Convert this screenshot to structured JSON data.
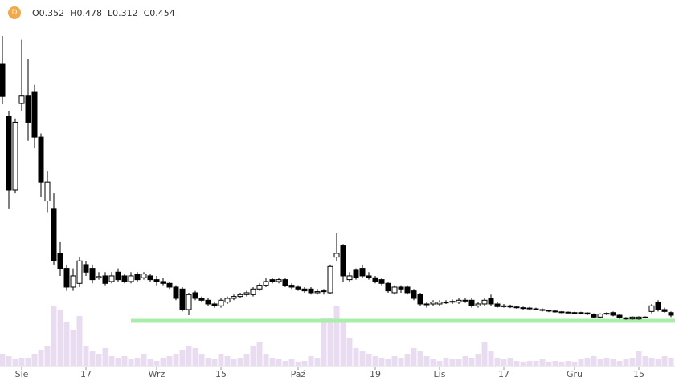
{
  "chart_data": {
    "type": "candlestick",
    "symbol": "D",
    "ohlc_legend": [
      {
        "label": "O",
        "value": 0.352
      },
      {
        "label": "H",
        "value": 0.478
      },
      {
        "label": "L",
        "value": 0.312
      },
      {
        "label": "C",
        "value": 0.454
      }
    ],
    "categories": [
      null,
      null,
      null,
      "Sle",
      null,
      null,
      null,
      null,
      null,
      null,
      null,
      null,
      null,
      "17",
      null,
      null,
      null,
      null,
      null,
      null,
      null,
      null,
      null,
      null,
      "Wrz",
      null,
      null,
      null,
      null,
      null,
      null,
      null,
      null,
      null,
      "15",
      null,
      null,
      null,
      null,
      null,
      null,
      null,
      null,
      null,
      null,
      null,
      "Paź",
      null,
      null,
      null,
      null,
      null,
      null,
      null,
      null,
      null,
      null,
      null,
      "19",
      null,
      null,
      null,
      null,
      null,
      null,
      null,
      null,
      null,
      "Lis",
      null,
      null,
      null,
      null,
      null,
      null,
      null,
      null,
      null,
      "17",
      null,
      null,
      null,
      null,
      null,
      null,
      null,
      null,
      null,
      null,
      "Gru",
      null,
      null,
      null,
      null,
      null,
      null,
      null,
      null,
      null,
      "15",
      null,
      null,
      null,
      null,
      null
    ],
    "open": [
      0.925,
      0.786,
      0.589,
      0.82,
      0.84,
      0.85,
      0.73,
      0.56,
      0.54,
      0.42,
      0.38,
      0.33,
      0.34,
      0.39,
      0.38,
      0.355,
      0.36,
      0.345,
      0.37,
      0.36,
      0.345,
      0.365,
      0.355,
      0.36,
      0.35,
      0.345,
      0.34,
      0.33,
      0.325,
      0.27,
      0.315,
      0.3,
      0.295,
      0.285,
      0.28,
      0.29,
      0.3,
      0.305,
      0.31,
      0.31,
      0.325,
      0.335,
      0.35,
      0.345,
      0.35,
      0.335,
      0.33,
      0.325,
      0.325,
      0.315,
      0.318,
      0.315,
      0.41,
      0.44,
      0.35,
      0.375,
      0.38,
      0.36,
      0.355,
      0.35,
      0.34,
      0.315,
      0.33,
      0.33,
      0.32,
      0.31,
      0.285,
      0.285,
      0.285,
      0.29,
      0.29,
      0.29,
      0.295,
      0.295,
      0.28,
      0.285,
      0.3,
      0.285,
      0.278,
      0.28,
      0.277,
      0.275,
      0.274,
      0.272,
      0.27,
      0.268,
      0.266,
      0.264,
      0.263,
      0.262,
      0.262,
      0.261,
      0.258,
      0.25,
      0.258,
      0.262,
      0.255,
      0.248,
      0.245,
      0.245,
      0.25,
      0.265,
      0.29,
      0.27,
      0.262
    ],
    "high": [
      1.0,
      0.8,
      0.78,
      0.99,
      0.94,
      0.87,
      0.74,
      0.64,
      0.58,
      0.45,
      0.39,
      0.38,
      0.41,
      0.4,
      0.39,
      0.37,
      0.37,
      0.37,
      0.38,
      0.365,
      0.37,
      0.37,
      0.37,
      0.365,
      0.36,
      0.355,
      0.345,
      0.335,
      0.33,
      0.315,
      0.32,
      0.305,
      0.3,
      0.29,
      0.3,
      0.305,
      0.31,
      0.315,
      0.32,
      0.33,
      0.34,
      0.355,
      0.355,
      0.355,
      0.355,
      0.34,
      0.335,
      0.33,
      0.33,
      0.325,
      0.325,
      0.39,
      0.475,
      0.445,
      0.37,
      0.38,
      0.39,
      0.37,
      0.36,
      0.355,
      0.345,
      0.335,
      0.335,
      0.335,
      0.325,
      0.315,
      0.29,
      0.295,
      0.295,
      0.295,
      0.297,
      0.3,
      0.3,
      0.3,
      0.29,
      0.3,
      0.31,
      0.29,
      0.285,
      0.283,
      0.28,
      0.278,
      0.277,
      0.275,
      0.273,
      0.27,
      0.268,
      0.266,
      0.265,
      0.264,
      0.264,
      0.263,
      0.26,
      0.26,
      0.263,
      0.265,
      0.258,
      0.25,
      0.252,
      0.252,
      0.252,
      0.285,
      0.295,
      0.275,
      0.265
    ],
    "low": [
      0.818,
      0.54,
      0.58,
      0.8,
      0.72,
      0.7,
      0.57,
      0.53,
      0.39,
      0.36,
      0.32,
      0.32,
      0.33,
      0.36,
      0.34,
      0.35,
      0.335,
      0.34,
      0.345,
      0.34,
      0.34,
      0.345,
      0.35,
      0.345,
      0.335,
      0.335,
      0.325,
      0.295,
      0.265,
      0.255,
      0.295,
      0.29,
      0.28,
      0.275,
      0.275,
      0.285,
      0.295,
      0.3,
      0.305,
      0.305,
      0.32,
      0.33,
      0.34,
      0.34,
      0.33,
      0.325,
      0.32,
      0.315,
      0.31,
      0.31,
      0.31,
      0.312,
      0.4,
      0.345,
      0.345,
      0.35,
      0.355,
      0.35,
      0.34,
      0.335,
      0.315,
      0.31,
      0.315,
      0.31,
      0.295,
      0.28,
      0.275,
      0.28,
      0.28,
      0.285,
      0.285,
      0.285,
      0.288,
      0.275,
      0.275,
      0.28,
      0.28,
      0.275,
      0.275,
      0.274,
      0.272,
      0.27,
      0.27,
      0.268,
      0.265,
      0.263,
      0.262,
      0.26,
      0.26,
      0.259,
      0.258,
      0.255,
      0.248,
      0.248,
      0.255,
      0.252,
      0.245,
      0.243,
      0.243,
      0.243,
      0.247,
      0.26,
      0.265,
      0.262,
      0.25
    ],
    "close": [
      0.839,
      0.589,
      0.77,
      0.84,
      0.77,
      0.73,
      0.61,
      0.61,
      0.4,
      0.38,
      0.33,
      0.36,
      0.4,
      0.37,
      0.35,
      0.358,
      0.34,
      0.36,
      0.35,
      0.345,
      0.36,
      0.35,
      0.365,
      0.35,
      0.345,
      0.34,
      0.33,
      0.3,
      0.27,
      0.31,
      0.3,
      0.295,
      0.285,
      0.28,
      0.295,
      0.3,
      0.305,
      0.31,
      0.315,
      0.325,
      0.335,
      0.345,
      0.345,
      0.35,
      0.335,
      0.33,
      0.325,
      0.32,
      0.315,
      0.318,
      0.32,
      0.385,
      0.42,
      0.36,
      0.36,
      0.355,
      0.36,
      0.355,
      0.345,
      0.34,
      0.32,
      0.33,
      0.325,
      0.315,
      0.3,
      0.285,
      0.283,
      0.29,
      0.29,
      0.29,
      0.292,
      0.295,
      0.293,
      0.28,
      0.285,
      0.295,
      0.285,
      0.278,
      0.28,
      0.277,
      0.275,
      0.274,
      0.272,
      0.27,
      0.268,
      0.266,
      0.264,
      0.263,
      0.262,
      0.262,
      0.261,
      0.258,
      0.25,
      0.258,
      0.26,
      0.255,
      0.248,
      0.245,
      0.25,
      0.25,
      0.25,
      0.28,
      0.27,
      0.265,
      0.255
    ],
    "volume": [
      15,
      12,
      8,
      10,
      10,
      15,
      20,
      25,
      75,
      70,
      55,
      45,
      62,
      25,
      18,
      15,
      22,
      12,
      10,
      12,
      8,
      10,
      15,
      8,
      6,
      10,
      12,
      15,
      20,
      25,
      22,
      15,
      10,
      8,
      15,
      12,
      8,
      10,
      15,
      25,
      30,
      15,
      10,
      8,
      6,
      8,
      5,
      6,
      12,
      10,
      60,
      60,
      75,
      55,
      35,
      22,
      18,
      15,
      12,
      10,
      8,
      12,
      10,
      15,
      22,
      18,
      12,
      8,
      6,
      10,
      8,
      8,
      12,
      10,
      15,
      30,
      18,
      10,
      8,
      10,
      6,
      5,
      6,
      6,
      8,
      5,
      6,
      5,
      6,
      5,
      8,
      10,
      12,
      8,
      10,
      8,
      6,
      8,
      10,
      18,
      12,
      10,
      8,
      12,
      10
    ],
    "ylim": [
      0.24,
      1.0
    ],
    "volume_lim": [
      0,
      100
    ],
    "up_color": "#ffffff",
    "down_color": "#000000",
    "volume_color": "#eadcf0",
    "support_line": {
      "value": 0.24,
      "start_index": 20,
      "color": "#a8eda8"
    }
  }
}
